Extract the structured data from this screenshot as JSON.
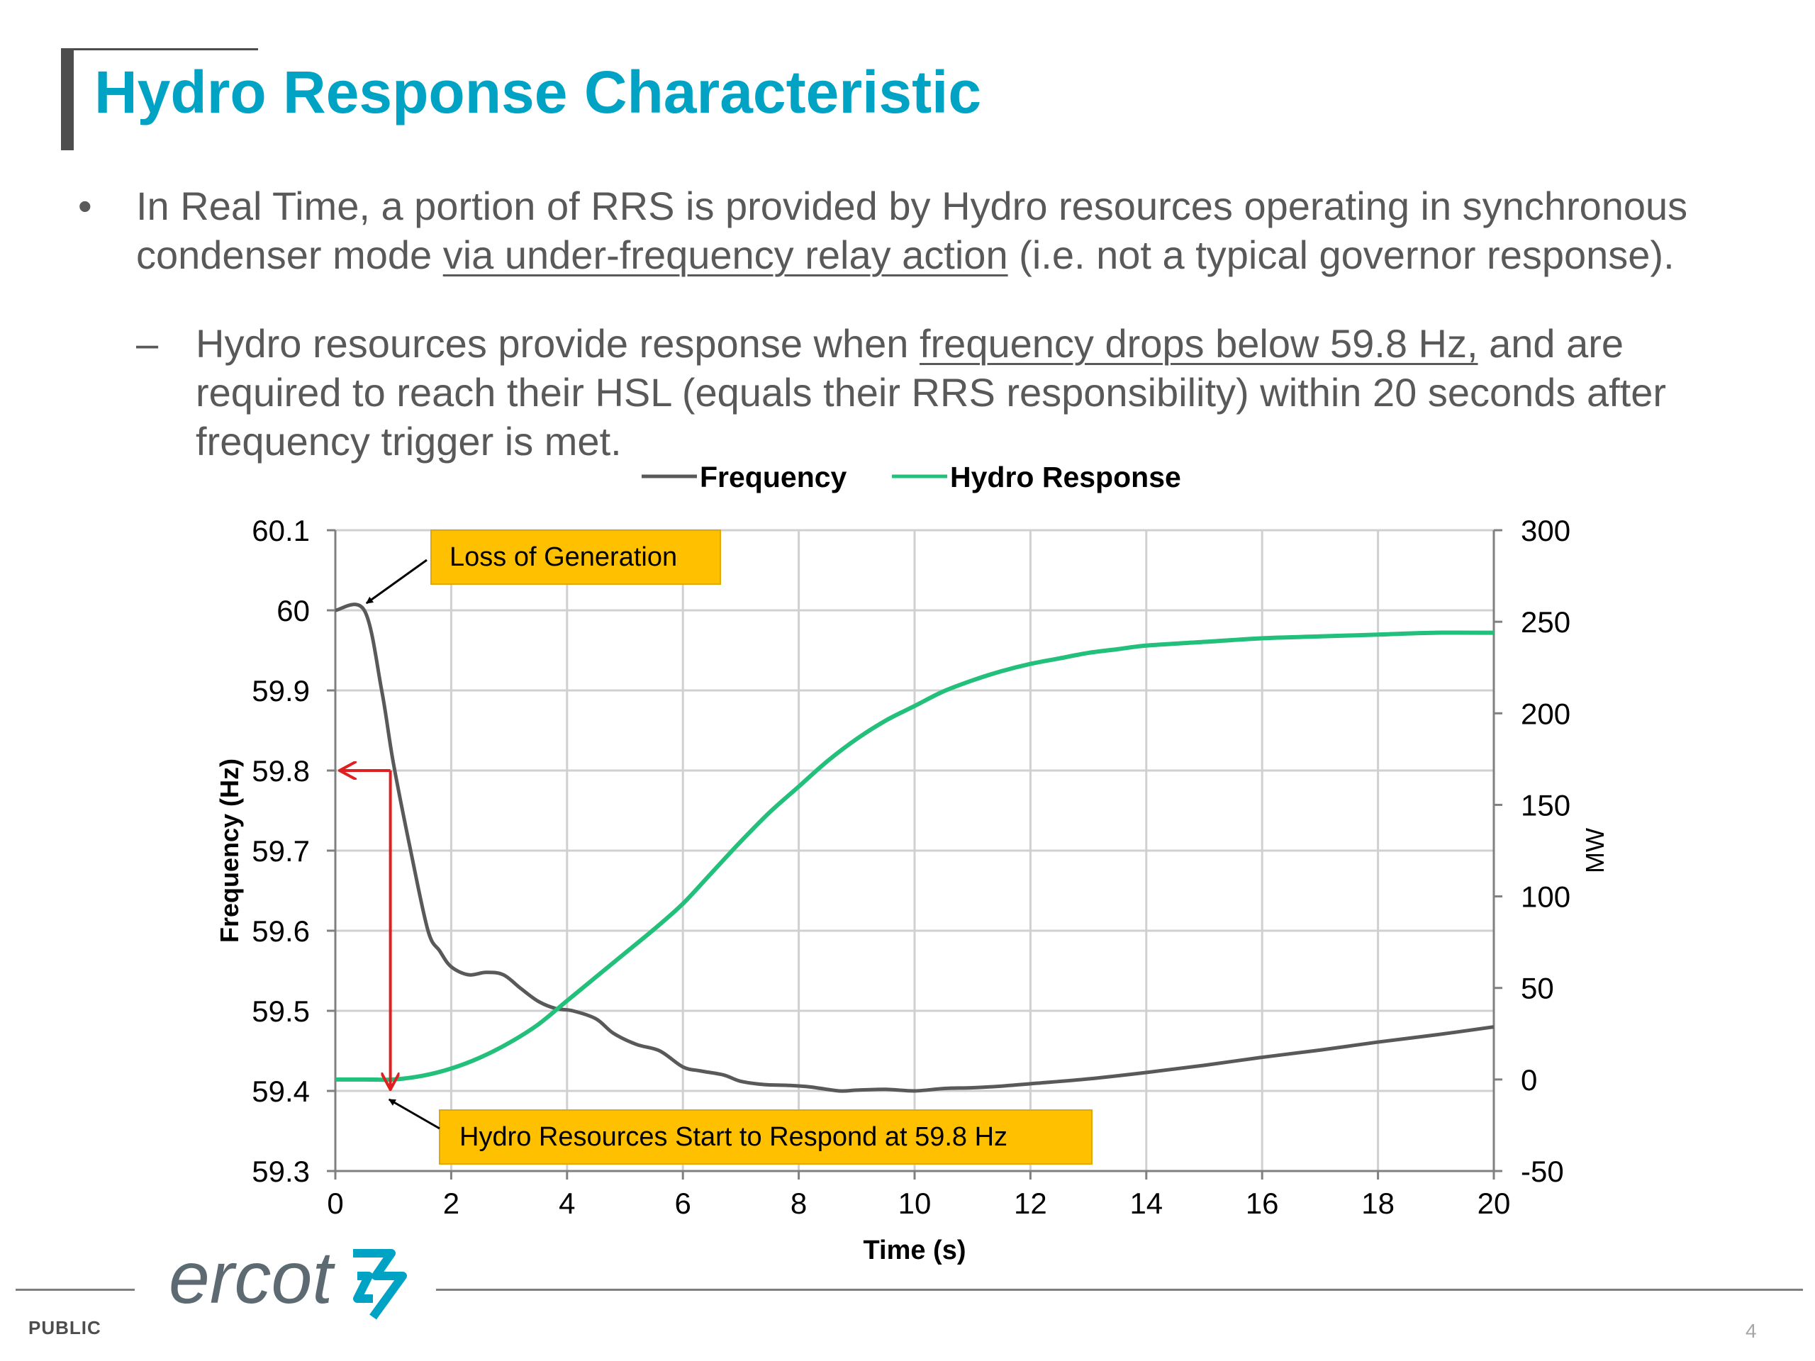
{
  "slide": {
    "title": "Hydro Response Characteristic",
    "bullet1_marker": "•",
    "bullet1_line1": "In Real Time, a portion of RRS is provided by Hydro resources operating in synchronous",
    "bullet1_line2_pre": "condenser mode ",
    "bullet1_line2_underlined": "via under-frequency relay action",
    "bullet1_line2_post": " (i.e. not a typical governor response).",
    "bullet2_marker": "–",
    "bullet2_line1_pre": "Hydro resources provide response when ",
    "bullet2_line1_underlined": "frequency drops below 59.8 Hz,",
    "bullet2_line1_post": " and are",
    "bullet2_line2": "required to reach their HSL (equals their RRS responsibility) within 20 seconds after",
    "bullet2_line3": "frequency trigger is met.",
    "footer_label": "PUBLIC",
    "page_number": "4",
    "logo_text": "ercot"
  },
  "chart_data": {
    "type": "line",
    "legend_position": "top",
    "xlabel": "Time (s)",
    "ylabel_left": "Frequency (Hz)",
    "ylabel_right": "MW",
    "xlim": [
      0,
      20
    ],
    "ylim_left": [
      59.3,
      60.1
    ],
    "ylim_right": [
      -50,
      300
    ],
    "grid": true,
    "x_ticks": [
      "0",
      "2",
      "4",
      "6",
      "8",
      "10",
      "12",
      "14",
      "16",
      "18",
      "20"
    ],
    "y_ticks_left": [
      "60.1",
      "60",
      "59.9",
      "59.8",
      "59.7",
      "59.6",
      "59.5",
      "59.4",
      "59.3"
    ],
    "y_ticks_right": [
      "300",
      "250",
      "200",
      "150",
      "100",
      "50",
      "0",
      "-50"
    ],
    "series": [
      {
        "name": "Frequency",
        "axis": "left",
        "color": "#595959",
        "x": [
          0,
          0.5,
          0.8,
          1.0,
          1.3,
          1.6,
          1.8,
          2.0,
          2.3,
          2.6,
          2.9,
          3.2,
          3.5,
          3.8,
          4.1,
          4.5,
          4.8,
          5.2,
          5.6,
          6.0,
          6.3,
          6.7,
          7.0,
          7.4,
          7.8,
          8.2,
          8.7,
          9.0,
          9.5,
          10.0,
          10.5,
          11.0,
          11.5,
          12.0,
          13.0,
          14.0,
          15.0,
          16.0,
          17.0,
          18.0,
          19.0,
          20.0
        ],
        "values": [
          60.0,
          60.0,
          59.9,
          59.81,
          59.7,
          59.6,
          59.575,
          59.555,
          59.545,
          59.548,
          59.545,
          59.528,
          59.512,
          59.503,
          59.5,
          59.49,
          59.472,
          59.458,
          59.45,
          59.43,
          59.425,
          59.42,
          59.412,
          59.408,
          59.407,
          59.405,
          59.4,
          59.401,
          59.402,
          59.4,
          59.403,
          59.404,
          59.406,
          59.409,
          59.415,
          59.423,
          59.432,
          59.442,
          59.451,
          59.461,
          59.47,
          59.48
        ]
      },
      {
        "name": "Hydro Response",
        "axis": "right",
        "color": "#22c07a",
        "x": [
          0,
          0.5,
          1.0,
          1.5,
          2.0,
          2.5,
          3.0,
          3.5,
          4.0,
          4.5,
          5.0,
          5.5,
          6.0,
          6.5,
          7.0,
          7.5,
          8.0,
          8.5,
          9.0,
          9.5,
          10.0,
          10.5,
          11.0,
          11.5,
          12.0,
          12.5,
          13.0,
          13.5,
          14.0,
          15.0,
          16.0,
          17.0,
          18.0,
          19.0,
          20.0
        ],
        "values": [
          0,
          0,
          0,
          2,
          6,
          12,
          20,
          30,
          43,
          56,
          69,
          82,
          96,
          113,
          130,
          146,
          160,
          174,
          186,
          196,
          204,
          212,
          218,
          223,
          227,
          230,
          233,
          235,
          237,
          239,
          241,
          242,
          243,
          244,
          244
        ]
      }
    ],
    "annotations": [
      {
        "text": "Loss of Generation",
        "arrow_to_x": 0.5,
        "arrow_to_y": 60.0
      },
      {
        "text": "Hydro Resources Start to Respond at 59.8 Hz",
        "arrow_to_x": 1.0,
        "arrow_to_y": 59.4
      }
    ],
    "marker_lines": [
      {
        "description": "red",
        "color": "#e02020",
        "x": 0.95,
        "from_y": 59.8,
        "to_y": 59.4
      }
    ]
  }
}
